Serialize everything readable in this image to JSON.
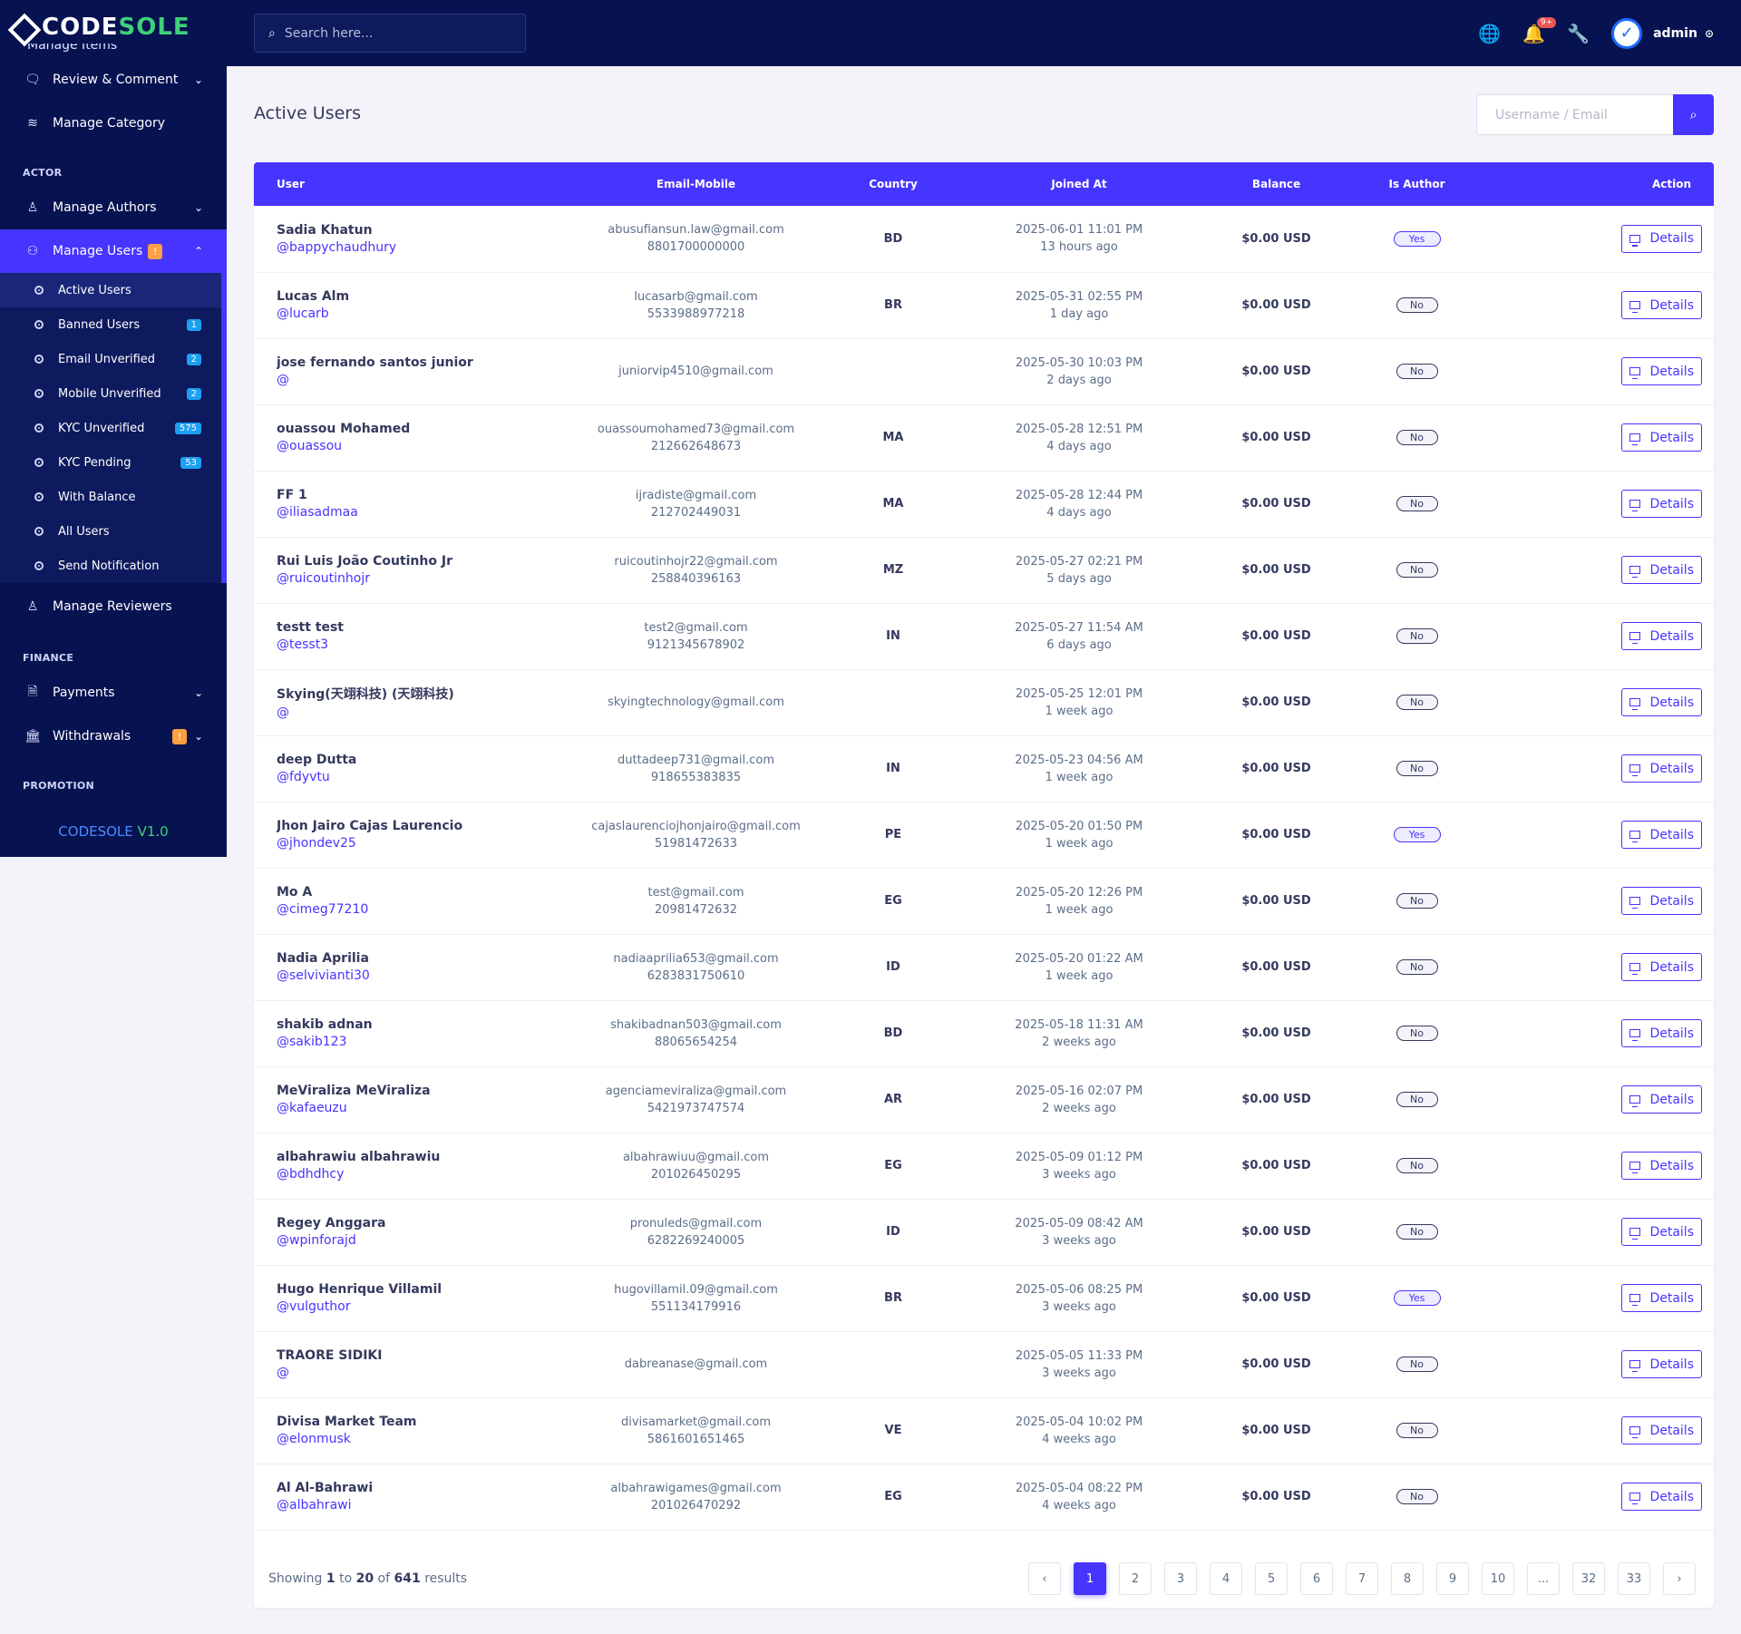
{
  "brand": {
    "part1": "CODE",
    "part2": "SOLE"
  },
  "sidebar": {
    "cut_item": "Manage Items",
    "top_items": [
      {
        "label": "Review & Comment",
        "icon": "comment-icon",
        "chevron": true
      },
      {
        "label": "Manage Category",
        "icon": "layers-icon",
        "chevron": false
      }
    ],
    "section_actor": "ACTOR",
    "manage_authors": "Manage Authors",
    "manage_users": "Manage Users",
    "manage_users_badge": "!",
    "submenu": [
      {
        "label": "Active Users",
        "badge": ""
      },
      {
        "label": "Banned Users",
        "badge": "1"
      },
      {
        "label": "Email Unverified",
        "badge": "2"
      },
      {
        "label": "Mobile Unverified",
        "badge": "2"
      },
      {
        "label": "KYC Unverified",
        "badge": "575"
      },
      {
        "label": "KYC Pending",
        "badge": "53"
      },
      {
        "label": "With Balance",
        "badge": ""
      },
      {
        "label": "All Users",
        "badge": ""
      },
      {
        "label": "Send Notification",
        "badge": ""
      }
    ],
    "manage_reviewers": "Manage Reviewers",
    "section_finance": "FINANCE",
    "payments": "Payments",
    "withdrawals": "Withdrawals",
    "withdrawals_badge": "!",
    "section_promotion": "PROMOTION",
    "version_name": "CODESOLE",
    "version_num": "V1.0"
  },
  "topbar": {
    "search_placeholder": "Search here...",
    "notification_count": "9+",
    "admin_name": "admin"
  },
  "page": {
    "title": "Active Users",
    "search_placeholder": "Username / Email"
  },
  "table": {
    "headers": [
      "User",
      "Email-Mobile",
      "Country",
      "Joined At",
      "Balance",
      "Is Author",
      "Action"
    ],
    "details_label": "Details",
    "rows": [
      {
        "name": "Sadia Khatun",
        "handle": "@bappychaudhury",
        "email": "abusufiansun.law@gmail.com",
        "mobile": "8801700000000",
        "country": "BD",
        "joined": "2025-06-01 11:01 PM",
        "ago": "13 hours ago",
        "balance": "$0.00 USD",
        "author": "Yes"
      },
      {
        "name": "Lucas Alm",
        "handle": "@lucarb",
        "email": "lucasarb@gmail.com",
        "mobile": "5533988977218",
        "country": "BR",
        "joined": "2025-05-31 02:55 PM",
        "ago": "1 day ago",
        "balance": "$0.00 USD",
        "author": "No"
      },
      {
        "name": "jose fernando santos junior",
        "handle": "@",
        "email": "juniorvip4510@gmail.com",
        "mobile": "",
        "country": "",
        "joined": "2025-05-30 10:03 PM",
        "ago": "2 days ago",
        "balance": "$0.00 USD",
        "author": "No"
      },
      {
        "name": "ouassou Mohamed",
        "handle": "@ouassou",
        "email": "ouassoumohamed73@gmail.com",
        "mobile": "212662648673",
        "country": "MA",
        "joined": "2025-05-28 12:51 PM",
        "ago": "4 days ago",
        "balance": "$0.00 USD",
        "author": "No"
      },
      {
        "name": "FF 1",
        "handle": "@iliasadmaa",
        "email": "ijradiste@gmail.com",
        "mobile": "212702449031",
        "country": "MA",
        "joined": "2025-05-28 12:44 PM",
        "ago": "4 days ago",
        "balance": "$0.00 USD",
        "author": "No"
      },
      {
        "name": "Rui Luis João Coutinho Jr",
        "handle": "@ruicoutinhojr",
        "email": "ruicoutinhojr22@gmail.com",
        "mobile": "258840396163",
        "country": "MZ",
        "joined": "2025-05-27 02:21 PM",
        "ago": "5 days ago",
        "balance": "$0.00 USD",
        "author": "No"
      },
      {
        "name": "testt test",
        "handle": "@tesst3",
        "email": "test2@gmail.com",
        "mobile": "9121345678902",
        "country": "IN",
        "joined": "2025-05-27 11:54 AM",
        "ago": "6 days ago",
        "balance": "$0.00 USD",
        "author": "No"
      },
      {
        "name": "Skying(天翊科技) (天翊科技)",
        "handle": "@",
        "email": "skyingtechnology@gmail.com",
        "mobile": "",
        "country": "",
        "joined": "2025-05-25 12:01 PM",
        "ago": "1 week ago",
        "balance": "$0.00 USD",
        "author": "No"
      },
      {
        "name": "deep Dutta",
        "handle": "@fdyvtu",
        "email": "duttadeep731@gmail.com",
        "mobile": "918655383835",
        "country": "IN",
        "joined": "2025-05-23 04:56 AM",
        "ago": "1 week ago",
        "balance": "$0.00 USD",
        "author": "No"
      },
      {
        "name": "Jhon Jairo Cajas Laurencio",
        "handle": "@jhondev25",
        "email": "cajaslaurenciojhonjairo@gmail.com",
        "mobile": "51981472633",
        "country": "PE",
        "joined": "2025-05-20 01:50 PM",
        "ago": "1 week ago",
        "balance": "$0.00 USD",
        "author": "Yes"
      },
      {
        "name": "Mo A",
        "handle": "@cimeg77210",
        "email": "test@gmail.com",
        "mobile": "20981472632",
        "country": "EG",
        "joined": "2025-05-20 12:26 PM",
        "ago": "1 week ago",
        "balance": "$0.00 USD",
        "author": "No"
      },
      {
        "name": "Nadia Aprilia",
        "handle": "@selvivianti30",
        "email": "nadiaaprilia653@gmail.com",
        "mobile": "6283831750610",
        "country": "ID",
        "joined": "2025-05-20 01:22 AM",
        "ago": "1 week ago",
        "balance": "$0.00 USD",
        "author": "No"
      },
      {
        "name": "shakib adnan",
        "handle": "@sakib123",
        "email": "shakibadnan503@gmail.com",
        "mobile": "88065654254",
        "country": "BD",
        "joined": "2025-05-18 11:31 AM",
        "ago": "2 weeks ago",
        "balance": "$0.00 USD",
        "author": "No"
      },
      {
        "name": "MeViraliza MeViraliza",
        "handle": "@kafaeuzu",
        "email": "agenciameviraliza@gmail.com",
        "mobile": "5421973747574",
        "country": "AR",
        "joined": "2025-05-16 02:07 PM",
        "ago": "2 weeks ago",
        "balance": "$0.00 USD",
        "author": "No"
      },
      {
        "name": "albahrawiu albahrawiu",
        "handle": "@bdhdhcy",
        "email": "albahrawiuu@gmail.com",
        "mobile": "201026450295",
        "country": "EG",
        "joined": "2025-05-09 01:12 PM",
        "ago": "3 weeks ago",
        "balance": "$0.00 USD",
        "author": "No"
      },
      {
        "name": "Regey Anggara",
        "handle": "@wpinforajd",
        "email": "pronuleds@gmail.com",
        "mobile": "6282269240005",
        "country": "ID",
        "joined": "2025-05-09 08:42 AM",
        "ago": "3 weeks ago",
        "balance": "$0.00 USD",
        "author": "No"
      },
      {
        "name": "Hugo Henrique Villamil",
        "handle": "@vulguthor",
        "email": "hugovillamil.09@gmail.com",
        "mobile": "551134179916",
        "country": "BR",
        "joined": "2025-05-06 08:25 PM",
        "ago": "3 weeks ago",
        "balance": "$0.00 USD",
        "author": "Yes"
      },
      {
        "name": "TRAORE SIDIKI",
        "handle": "@",
        "email": "dabreanase@gmail.com",
        "mobile": "",
        "country": "",
        "joined": "2025-05-05 11:33 PM",
        "ago": "3 weeks ago",
        "balance": "$0.00 USD",
        "author": "No"
      },
      {
        "name": "Divisa Market Team",
        "handle": "@elonmusk",
        "email": "divisamarket@gmail.com",
        "mobile": "5861601651465",
        "country": "VE",
        "joined": "2025-05-04 10:02 PM",
        "ago": "4 weeks ago",
        "balance": "$0.00 USD",
        "author": "No"
      },
      {
        "name": "Al Al-Bahrawi",
        "handle": "@albahrawi",
        "email": "albahrawigames@gmail.com",
        "mobile": "201026470292",
        "country": "EG",
        "joined": "2025-05-04 08:22 PM",
        "ago": "4 weeks ago",
        "balance": "$0.00 USD",
        "author": "No"
      }
    ]
  },
  "footer": {
    "showing_prefix": "Showing",
    "from": "1",
    "to_word": "to",
    "to": "20",
    "of_word": "of",
    "total": "641",
    "results_word": "results",
    "pages": [
      "‹",
      "1",
      "2",
      "3",
      "4",
      "5",
      "6",
      "7",
      "8",
      "9",
      "10",
      "...",
      "32",
      "33",
      "›"
    ],
    "active_page": "1"
  }
}
